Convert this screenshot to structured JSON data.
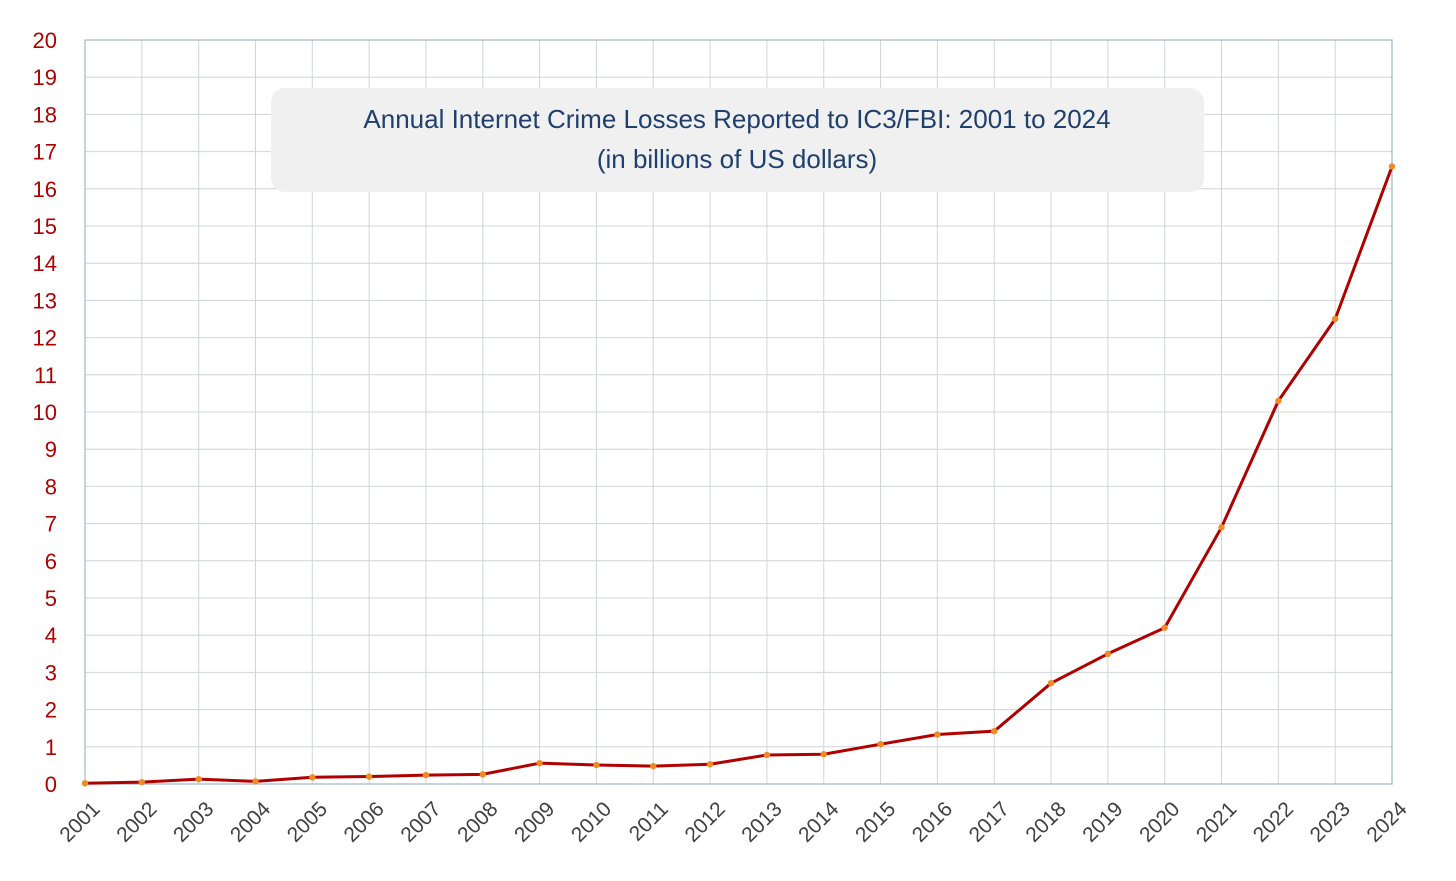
{
  "chart_data": {
    "type": "line",
    "title": "Annual Internet Crime Losses Reported to IC3/FBI: 2001 to 2024",
    "subtitle": "(in billions of US dollars)",
    "xlabel": "",
    "ylabel": "",
    "categories": [
      "2001",
      "2002",
      "2003",
      "2004",
      "2005",
      "2006",
      "2007",
      "2008",
      "2009",
      "2010",
      "2011",
      "2012",
      "2013",
      "2014",
      "2015",
      "2016",
      "2017",
      "2018",
      "2019",
      "2020",
      "2021",
      "2022",
      "2023",
      "2024"
    ],
    "series": [
      {
        "values": [
          0.02,
          0.05,
          0.13,
          0.07,
          0.18,
          0.2,
          0.24,
          0.26,
          0.56,
          0.51,
          0.48,
          0.53,
          0.78,
          0.8,
          1.07,
          1.33,
          1.42,
          2.71,
          3.5,
          4.2,
          6.9,
          10.3,
          12.5,
          16.6
        ]
      }
    ],
    "ylim": [
      0,
      20
    ],
    "yticks": [
      0,
      1,
      2,
      3,
      4,
      5,
      6,
      7,
      8,
      9,
      10,
      11,
      12,
      13,
      14,
      15,
      16,
      17,
      18,
      19,
      20
    ],
    "grid": true,
    "colors": {
      "line": "#b00000",
      "marker": "#f08a24",
      "grid": "#d0d4d8",
      "frame": "#9fb7c9",
      "title_box": "#f0f0f0",
      "title_text": "#1f3f6e"
    }
  }
}
